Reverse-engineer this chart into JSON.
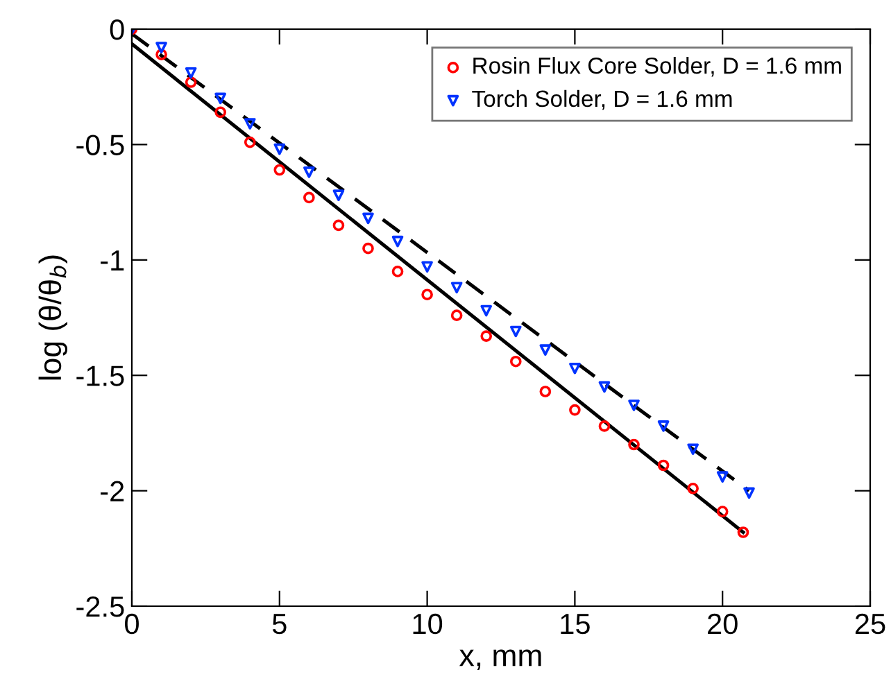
{
  "chart_data": {
    "type": "scatter",
    "xlabel": "x, mm",
    "ylabel": "log (θ/θ$_{b}$)",
    "xlim": [
      0,
      25
    ],
    "xticks": [
      0,
      5,
      10,
      15,
      20,
      25
    ],
    "ylim": [
      -2.5,
      0
    ],
    "yticks": [
      -2.5,
      -2,
      -1.5,
      -1,
      -0.5,
      0
    ],
    "grid": false,
    "legend": "top right",
    "series": [
      {
        "name": "Rosin Flux Core Solder, D = 1.6 mm",
        "color": "#ff0000",
        "marker": "circle",
        "x": [
          0,
          1,
          2,
          3,
          4,
          5,
          6,
          7,
          8,
          9,
          10,
          11,
          12,
          13,
          14,
          15,
          16,
          17,
          18,
          19,
          20,
          20.7
        ],
        "values": [
          0,
          -0.11,
          -0.23,
          -0.36,
          -0.49,
          -0.61,
          -0.73,
          -0.85,
          -0.95,
          -1.05,
          -1.15,
          -1.24,
          -1.33,
          -1.44,
          -1.57,
          -1.65,
          -1.72,
          -1.8,
          -1.89,
          -1.99,
          -2.09,
          -2.18
        ]
      },
      {
        "name": "Torch Solder, D = 1.6 mm",
        "color": "#0033ff",
        "marker": "triangle",
        "x": [
          0,
          1,
          2,
          3,
          4,
          5,
          6,
          7,
          8,
          9,
          10,
          11,
          12,
          13,
          14,
          15,
          16,
          17,
          18,
          19,
          20,
          20.9
        ],
        "values": [
          0,
          -0.08,
          -0.19,
          -0.3,
          -0.41,
          -0.52,
          -0.62,
          -0.72,
          -0.82,
          -0.92,
          -1.03,
          -1.12,
          -1.22,
          -1.31,
          -1.39,
          -1.47,
          -1.55,
          -1.63,
          -1.72,
          -1.82,
          -1.94,
          -2.01
        ]
      },
      {
        "type": "line",
        "color": "#000000",
        "line_style": "solid",
        "x": [
          0,
          20.7
        ],
        "values": [
          -0.064,
          -2.18
        ]
      },
      {
        "type": "line",
        "color": "#000000",
        "line_style": "dashed",
        "x": [
          0,
          20.9
        ],
        "values": [
          -0.02,
          -2.0
        ]
      }
    ]
  }
}
